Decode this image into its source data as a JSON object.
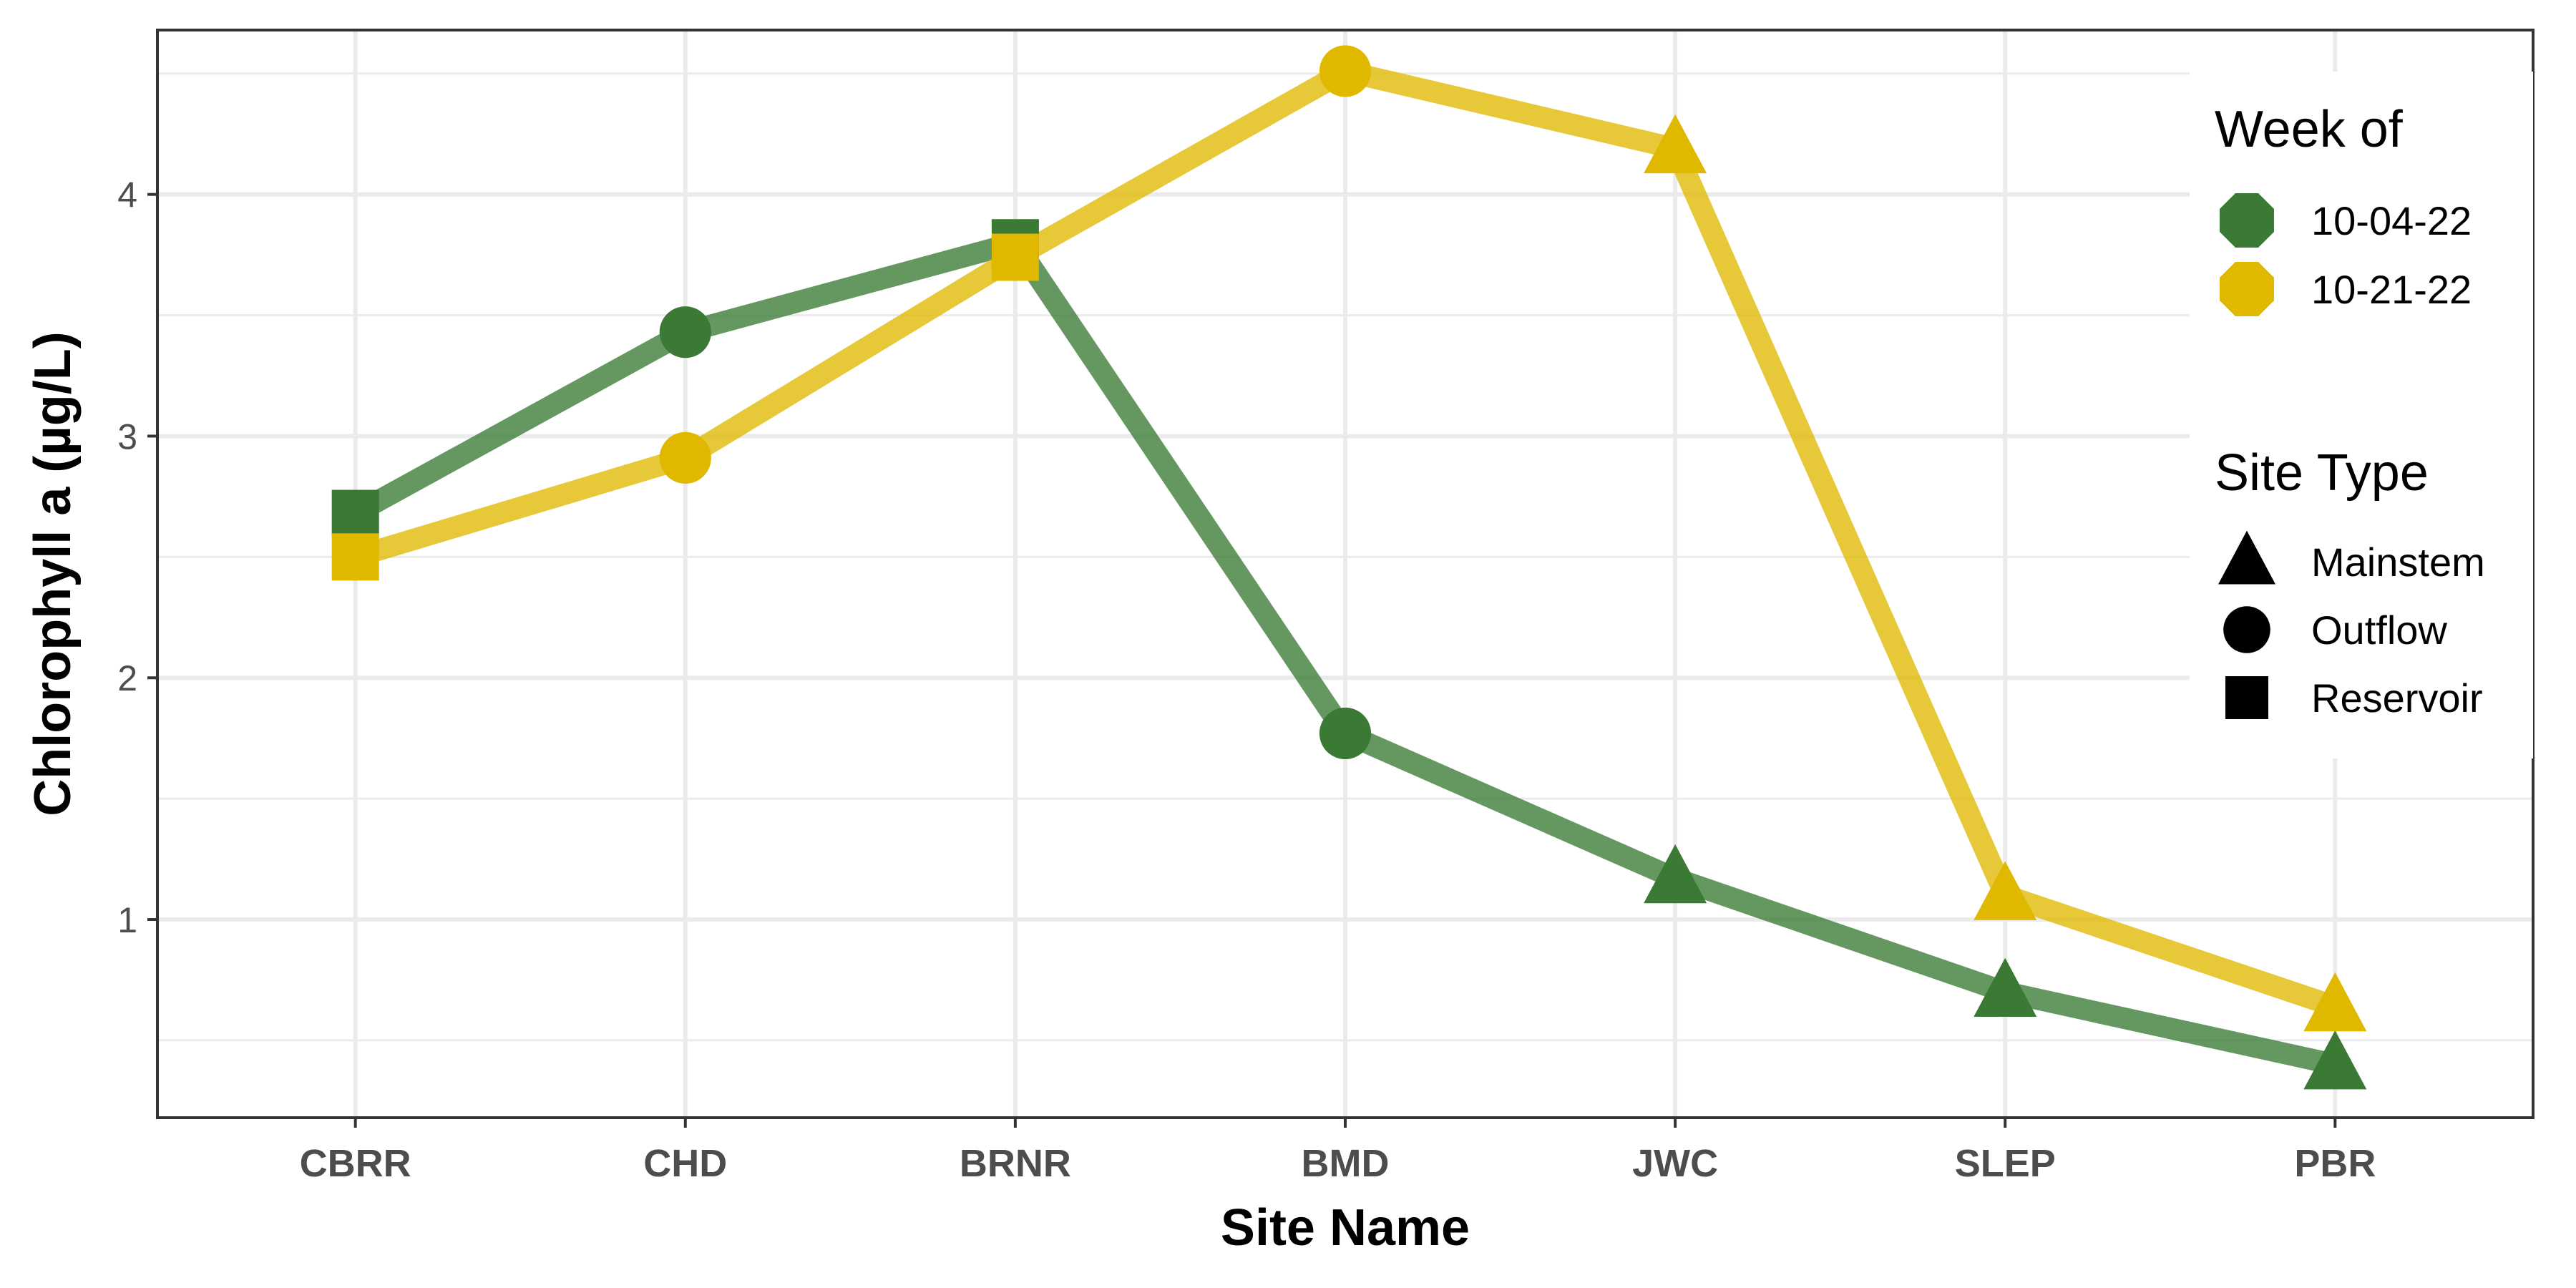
{
  "chart_data": {
    "type": "line",
    "xlabel": "Site Name",
    "ylabel": "Chlorophyll a (µg/L)",
    "categories": [
      "CBRR",
      "CHD",
      "BRNR",
      "BMD",
      "JWC",
      "SLEP",
      "PBR"
    ],
    "site_types": [
      "Reservoir",
      "Outflow",
      "Reservoir",
      "Outflow",
      "Mainstem",
      "Mainstem",
      "Mainstem"
    ],
    "ylim": [
      0.18,
      4.68
    ],
    "yticks": [
      1,
      2,
      3,
      4
    ],
    "grid": true,
    "series": [
      {
        "name": "10-04-22",
        "color": "#3a7a35",
        "values": [
          2.68,
          3.43,
          3.8,
          1.77,
          1.17,
          0.7,
          0.4
        ]
      },
      {
        "name": "10-21-22",
        "color": "#e0b800",
        "values": [
          2.5,
          2.91,
          3.74,
          4.51,
          4.19,
          1.1,
          0.64
        ]
      }
    ],
    "legend": {
      "position": "right",
      "color_title": "Week of",
      "shape_title": "Site Type",
      "shapes": [
        {
          "label": "Mainstem",
          "shape": "triangle"
        },
        {
          "label": "Outflow",
          "shape": "circle"
        },
        {
          "label": "Reservoir",
          "shape": "square"
        }
      ]
    }
  }
}
